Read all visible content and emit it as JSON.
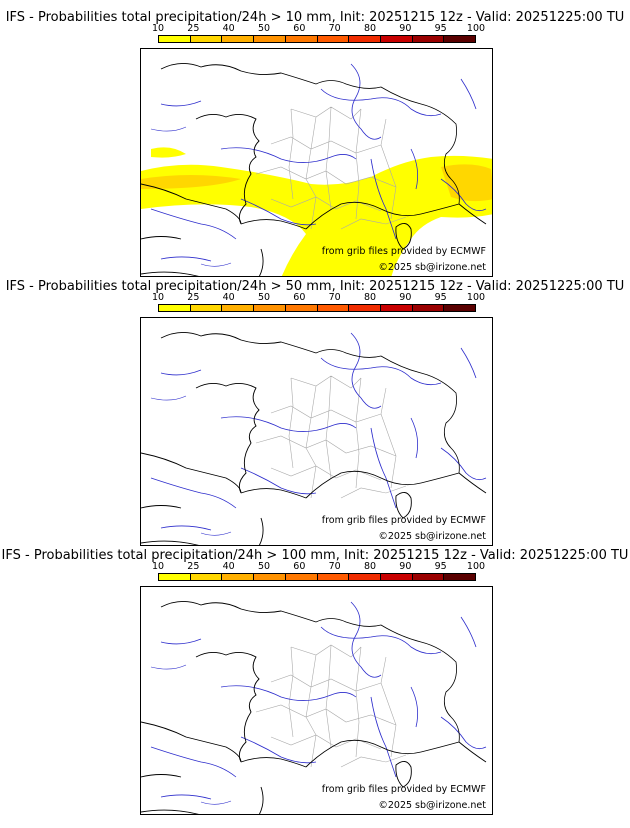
{
  "scale": {
    "labels": [
      "10",
      "25",
      "40",
      "50",
      "60",
      "70",
      "80",
      "90",
      "95",
      "100"
    ],
    "colors": [
      "#ffff00",
      "#ffd700",
      "#ffb000",
      "#ff9200",
      "#ff7800",
      "#ff5a00",
      "#f02c00",
      "#c80000",
      "#9a0000",
      "#5a0000"
    ]
  },
  "panels": [
    {
      "title": "IFS - Probabilities total precipitation/24h > 10 mm, Init: 20251215 12z - Valid: 20251225:00 TU",
      "threshold_mm": 10
    },
    {
      "title": "IFS - Probabilities total precipitation/24h > 50 mm, Init: 20251215 12z - Valid: 20251225:00 TU",
      "threshold_mm": 50
    },
    {
      "title": "IFS - Probabilities total precipitation/24h > 100 mm, Init: 20251215 12z - Valid: 20251225:00 TU",
      "threshold_mm": 100
    }
  ],
  "credits": {
    "grib": "from grib files provided by ECMWF",
    "copyright": "©2025 sb@irizone.net"
  },
  "map_colors": {
    "coast": "#000000",
    "border": "#000000",
    "rivers": "#2d2dcc",
    "departments": "#aaaaaa"
  }
}
